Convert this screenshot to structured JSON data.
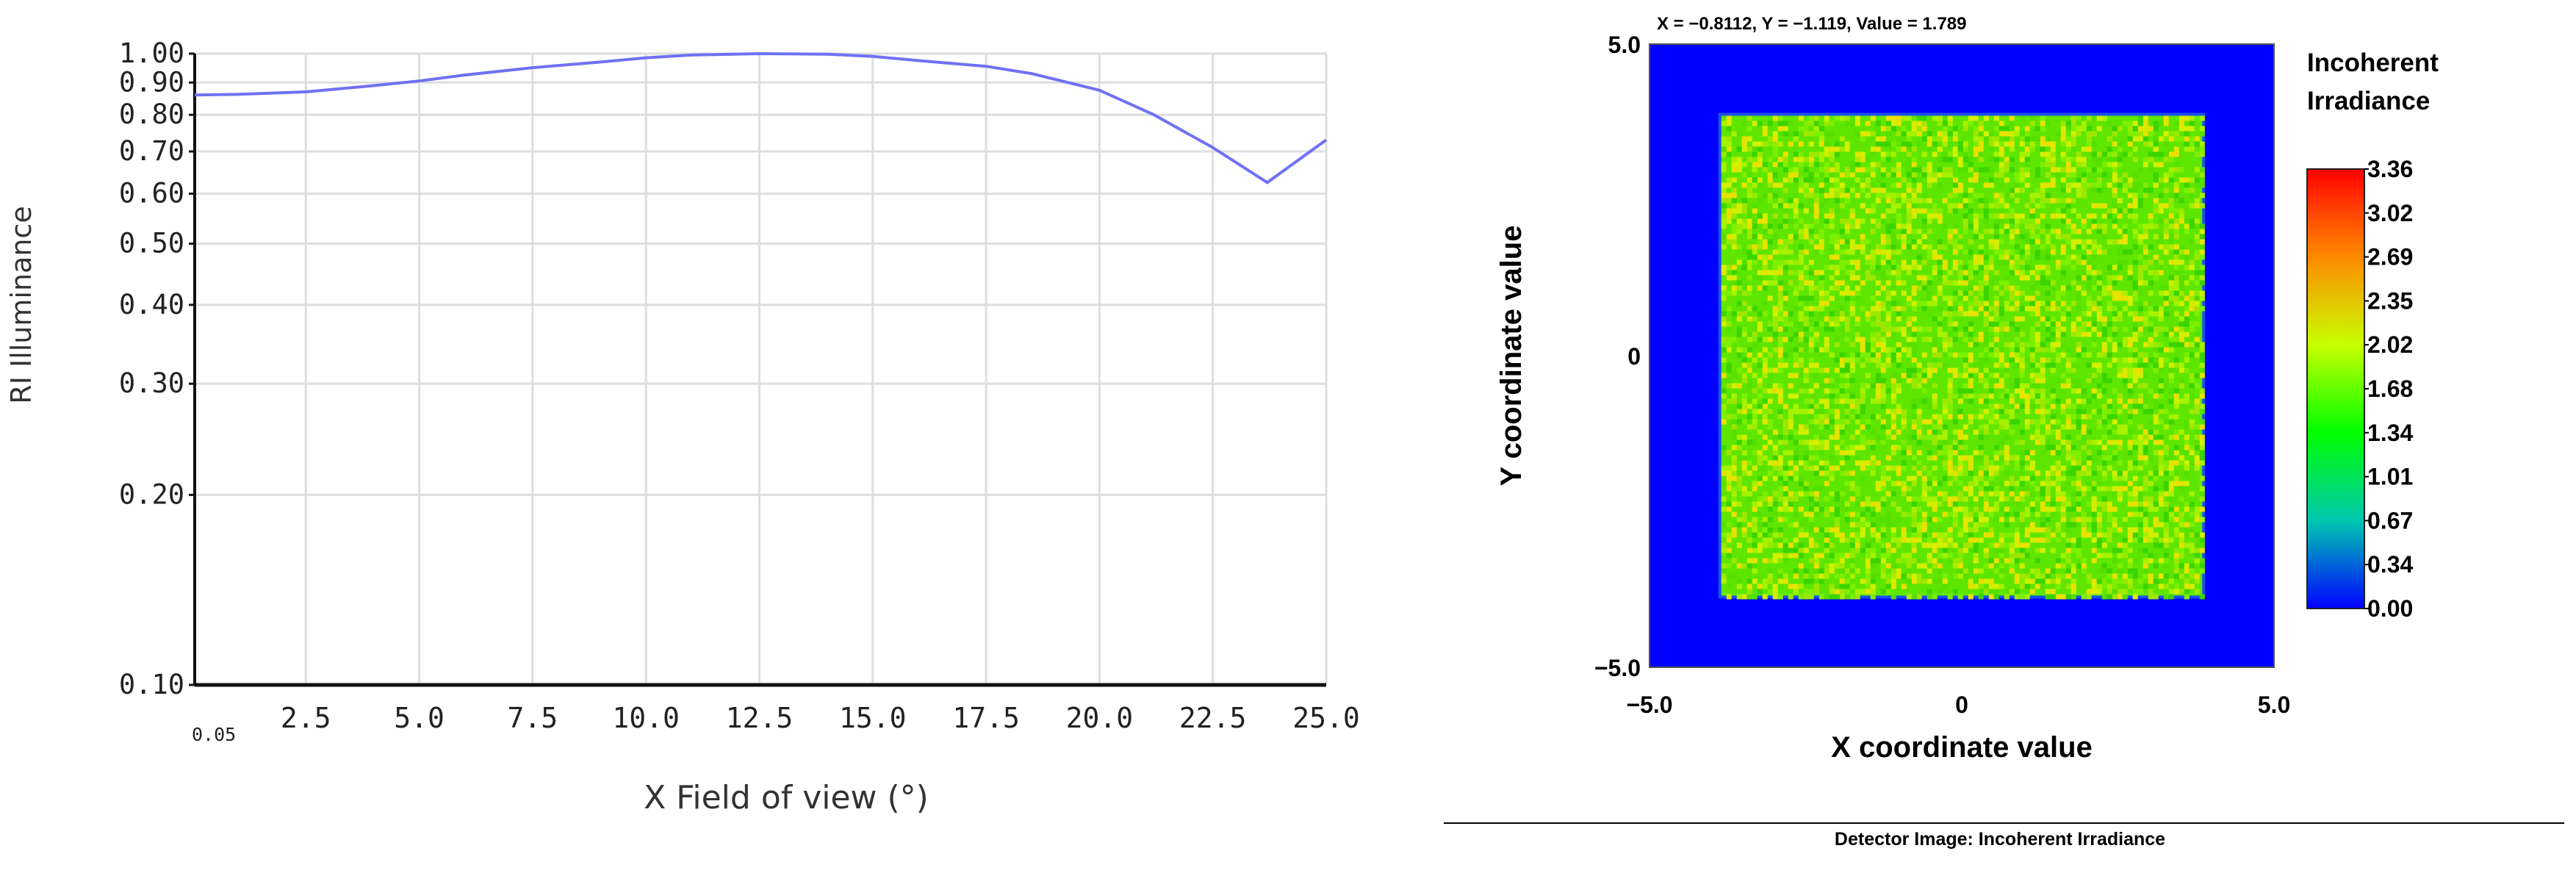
{
  "chart_data": [
    {
      "type": "line",
      "title": "",
      "xlabel": "X Field of view (°)",
      "ylabel": "RI Illuminance",
      "xlim": [
        0.05,
        25.0
      ],
      "ylim": [
        0.1,
        1.0
      ],
      "yscale": "log",
      "grid": true,
      "x_ticks": [
        "0.05",
        "2.5",
        "5.0",
        "7.5",
        "10.0",
        "12.5",
        "15.0",
        "17.5",
        "20.0",
        "22.5",
        "25.0"
      ],
      "x_tick_values": [
        0.05,
        2.5,
        5.0,
        7.5,
        10.0,
        12.5,
        15.0,
        17.5,
        20.0,
        22.5,
        25.0
      ],
      "y_ticks": [
        "1.00",
        "0.90",
        "0.80",
        "0.70",
        "0.60",
        "0.50",
        "0.40",
        "0.30",
        "0.20",
        "0.10"
      ],
      "y_tick_values": [
        1.0,
        0.9,
        0.8,
        0.7,
        0.6,
        0.5,
        0.4,
        0.3,
        0.2,
        0.1
      ],
      "series": [
        {
          "color": "#6f72f2",
          "x": [
            0.05,
            1.0,
            2.5,
            4.0,
            5.0,
            6.0,
            7.5,
            9.0,
            10.0,
            11.0,
            12.5,
            14.0,
            15.0,
            16.0,
            17.5,
            18.5,
            20.0,
            21.2,
            22.5,
            23.7,
            25.0
          ],
          "y": [
            0.86,
            0.862,
            0.87,
            0.89,
            0.905,
            0.925,
            0.95,
            0.97,
            0.985,
            0.995,
            1.0,
            0.998,
            0.99,
            0.975,
            0.955,
            0.93,
            0.875,
            0.8,
            0.71,
            0.625,
            0.73
          ]
        }
      ]
    },
    {
      "type": "heatmap",
      "title": "Incoherent\nIrradiance",
      "readout": "X = −0.8112, Y = −1.119, Value = 1.789",
      "xlabel": "X coordinate value",
      "ylabel": "Y coordinate value",
      "xlim": [
        -5.0,
        5.0
      ],
      "ylim": [
        -5.0,
        5.0
      ],
      "x_ticks": [
        "−5.0",
        "0",
        "5.0"
      ],
      "x_tick_values": [
        -5.0,
        0,
        5.0
      ],
      "y_ticks": [
        "5.0",
        "0",
        "−5.0"
      ],
      "y_tick_values": [
        5.0,
        0,
        -5.0
      ],
      "illuminated_region": {
        "x": [
          -3.85,
          3.85
        ],
        "y": [
          -3.85,
          3.85
        ],
        "mean_value": 1.79
      },
      "background_value": 0.0,
      "colorbar": {
        "ticks": [
          "3.36",
          "3.02",
          "2.69",
          "2.35",
          "2.02",
          "1.68",
          "1.34",
          "1.01",
          "0.67",
          "0.34",
          "0.00"
        ],
        "min": 0.0,
        "max": 3.36,
        "colors": [
          "#ff0000",
          "#ff8a00",
          "#c8ff00",
          "#00ff00",
          "#00c8b0",
          "#0000ff"
        ]
      },
      "footer": "Detector Image: Incoherent Irradiance"
    }
  ]
}
